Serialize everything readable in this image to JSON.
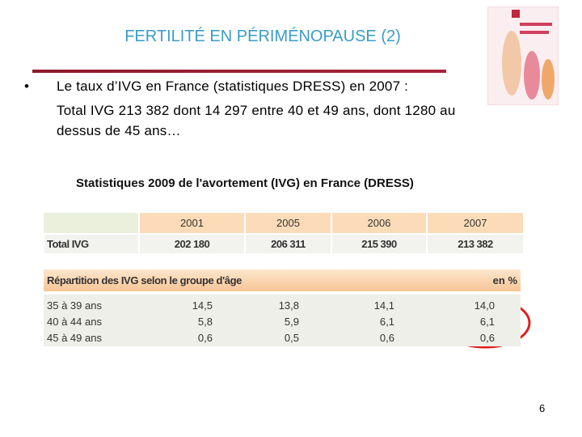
{
  "title": "FERTILITÉ EN PÉRIMÉNOPAUSE (2)",
  "bullet": {
    "lines": [
      "Le taux d’IVG en France (statistiques DRESS) en 2007 :",
      "Total IVG 213 382 dont 14 297 entre 40 et 49 ans, dont 1280 au",
      "dessus de 45 ans…"
    ]
  },
  "subtitle": "Statistiques 2009 de l'avortement (IVG) en France (DRESS)",
  "table1": {
    "columns": [
      "2001",
      "2005",
      "2006",
      "2007"
    ],
    "rows": [
      [
        "Total IVG",
        "202 180",
        "206 311",
        "215 390",
        "213 382"
      ]
    ]
  },
  "table2": {
    "header": "Répartition des IVG selon le groupe d'âge",
    "unit": "en %",
    "rows": [
      [
        "35 à 39 ans",
        "14,5",
        "13,8",
        "14,1",
        "14,0"
      ],
      [
        "40 à 44 ans",
        "5,8",
        "5,9",
        "6,1",
        "6,1"
      ],
      [
        "45 à 49 ans",
        "0,6",
        "0,5",
        "0,6",
        "0,6"
      ]
    ]
  },
  "page_number": "6"
}
